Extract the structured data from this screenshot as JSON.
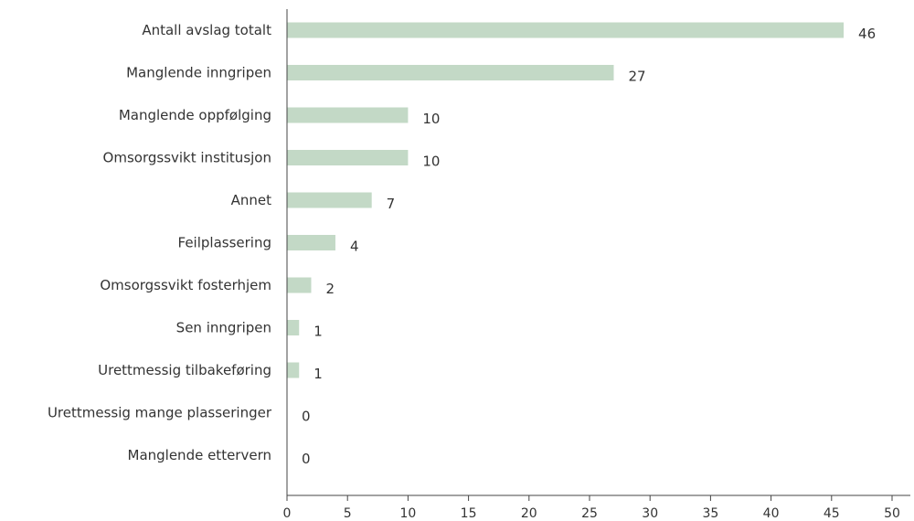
{
  "chart_data": {
    "type": "bar",
    "orientation": "horizontal",
    "title": "",
    "xlabel": "",
    "ylabel": "",
    "categories": [
      "Antall avslag totalt",
      "Manglende inngripen",
      "Manglende oppfølging",
      "Omsorgssvikt institusjon",
      "Annet",
      "Feilplassering",
      "Omsorgssvikt fosterhjem",
      "Sen inngripen",
      "Urettmessig tilbakeføring",
      "Urettmessig mange plasseringer",
      "Manglende ettervern"
    ],
    "values": [
      46,
      27,
      10,
      10,
      7,
      4,
      2,
      1,
      1,
      0,
      0
    ],
    "xlim": [
      0,
      50
    ],
    "xticks": [
      "0",
      "5",
      "10",
      "15",
      "20",
      "25",
      "30",
      "35",
      "40",
      "45",
      "50"
    ],
    "grid": false,
    "legend": "none",
    "bar_color": "#c3d9c6",
    "axis_color": "#444444",
    "text_color": "#333333"
  }
}
